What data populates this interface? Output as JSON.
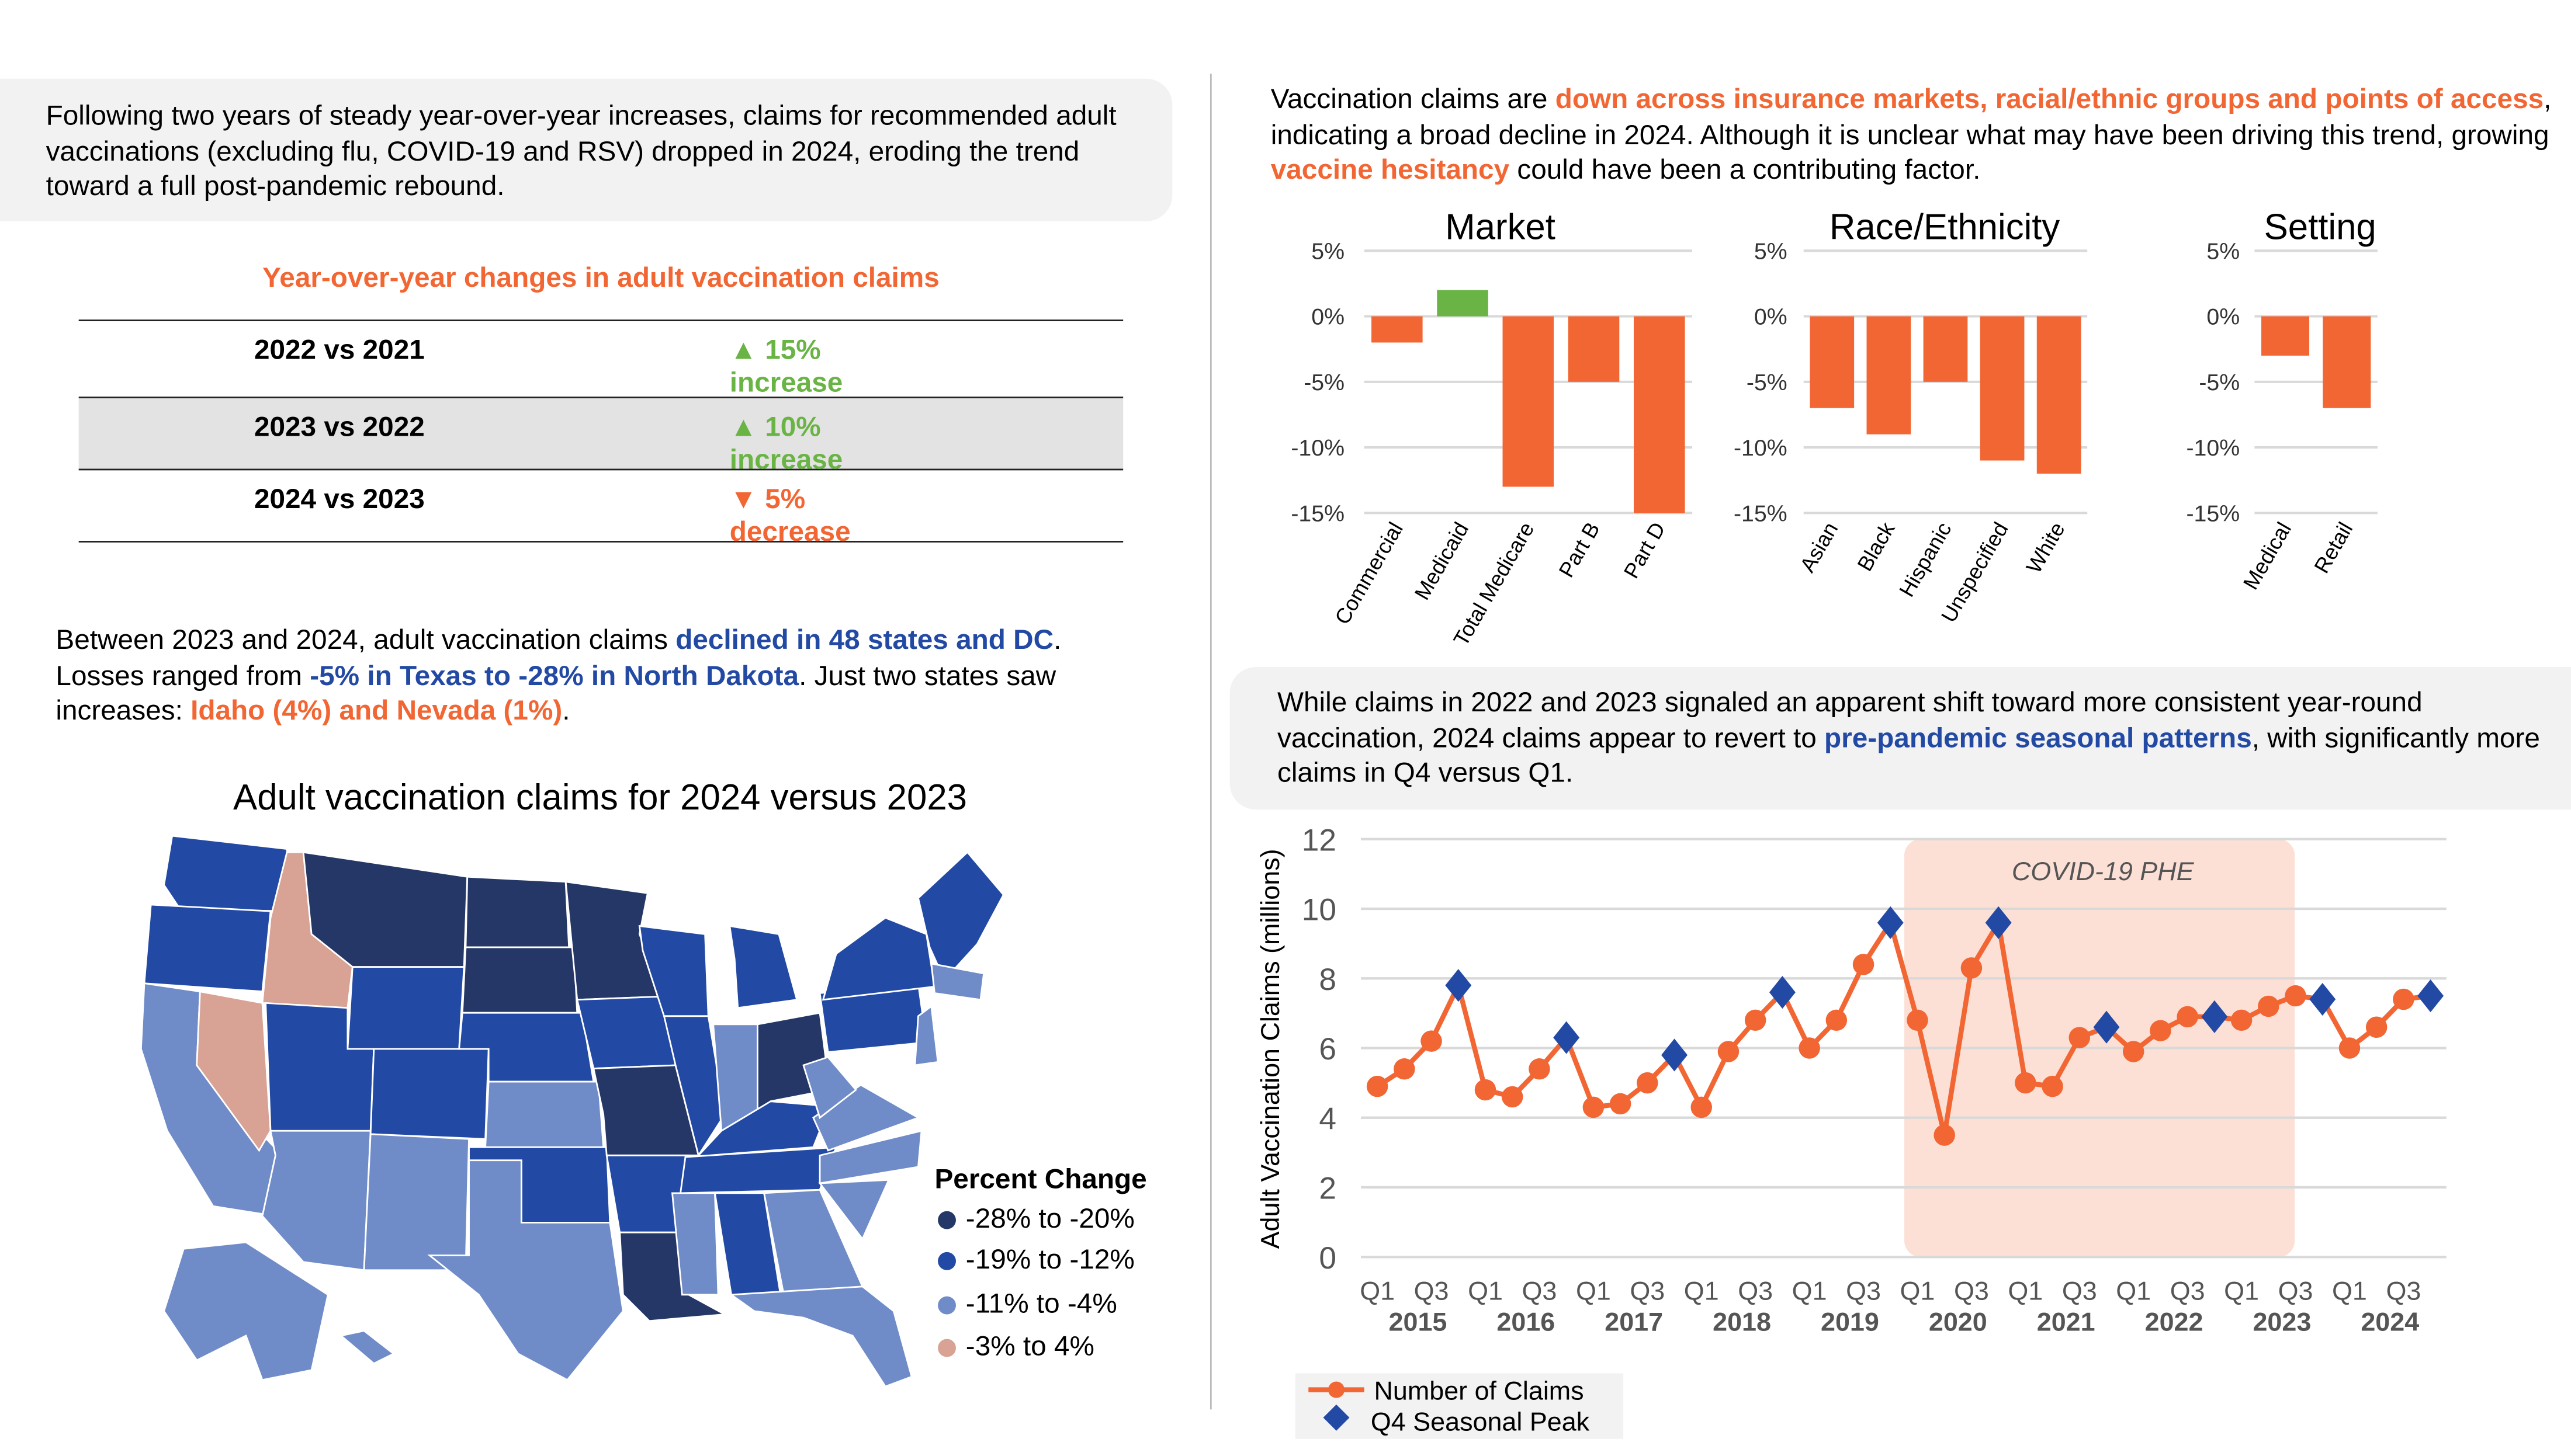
{
  "left": {
    "intro": "Following two years of steady year-over-year increases, claims for recommended adult vaccinations (excluding flu, COVID-19 and RSV) dropped in 2024, eroding the trend toward a full post-pandemic rebound.",
    "table": {
      "title": "Year-over-year changes in adult vaccination claims",
      "rows": [
        {
          "period": "2022 vs 2021",
          "change": "15% increase",
          "direction": "up"
        },
        {
          "period": "2023 vs 2022",
          "change": "10% increase",
          "direction": "up"
        },
        {
          "period": "2024 vs 2023",
          "change": "5% decrease",
          "direction": "down"
        }
      ]
    },
    "states_text": {
      "p1": "Between 2023 and 2024, adult vaccination claims ",
      "h1": "declined in 48 states and DC",
      "p2": ". Losses ranged from ",
      "h2": "-5% in Texas to -28% in North Dakota",
      "p3": ". Just two states saw increases: ",
      "h3": "Idaho (4%) and Nevada (1%)",
      "p4": "."
    },
    "map": {
      "title": "Adult vaccination claims for 2024 versus 2023",
      "legend_title": "Percent Change",
      "legend": [
        {
          "label": "-28% to -20%",
          "color": "#253766"
        },
        {
          "label": "-19% to -12%",
          "color": "#2249a3"
        },
        {
          "label": "-11% to -4%",
          "color": "#6f8bc8"
        },
        {
          "label": "-3% to 4%",
          "color": "#d8a295"
        }
      ]
    }
  },
  "right": {
    "intro": {
      "p1": "Vaccination claims are ",
      "h1": "down across insurance markets, racial/ethnic groups and points of access",
      "p2": ", indicating a broad decline in 2024. Although it is unclear what may have been driving this trend, growing ",
      "h2": "vaccine hesitancy",
      "p3": " could have been a contributing factor."
    },
    "seasonal": {
      "p1": "While claims in 2022 and 2023 signaled an apparent shift toward more consistent year-round vaccination, 2024 claims appear to revert to ",
      "h1": "pre-pandemic seasonal patterns",
      "p2": ", with significantly more claims in Q4 versus Q1."
    }
  },
  "colors": {
    "orange": "#f26633",
    "green": "#6ab445",
    "blue": "#2249a3",
    "phe": "#fce0d6"
  },
  "chart_data": [
    {
      "type": "bar",
      "title": "Market",
      "categories": [
        "Commercial",
        "Medicaid",
        "Total Medicare",
        "Part B",
        "Part D"
      ],
      "values": [
        -2,
        2,
        -13,
        -5,
        -15
      ],
      "ylim": [
        -15,
        5
      ],
      "yticks": [
        "5%",
        "0%",
        "-5%",
        "-10%",
        "-15%"
      ],
      "grid": true
    },
    {
      "type": "bar",
      "title": "Race/Ethnicity",
      "categories": [
        "Asian",
        "Black",
        "Hispanic",
        "Unspecified",
        "White"
      ],
      "values": [
        -7,
        -9,
        -5,
        -11,
        -12
      ],
      "ylim": [
        -15,
        5
      ],
      "yticks": [
        "5%",
        "0%",
        "-5%",
        "-10%",
        "-15%"
      ],
      "grid": true
    },
    {
      "type": "bar",
      "title": "Setting",
      "categories": [
        "Medical",
        "Retail"
      ],
      "values": [
        -3,
        -7
      ],
      "ylim": [
        -15,
        5
      ],
      "yticks": [
        "5%",
        "0%",
        "-5%",
        "-10%",
        "-15%"
      ],
      "grid": true
    },
    {
      "type": "line",
      "ylabel": "Adult Vaccination Claims (millions)",
      "ylim": [
        0,
        12
      ],
      "yticks": [
        "0",
        "2",
        "4",
        "6",
        "8",
        "10",
        "12"
      ],
      "years": [
        "2015",
        "2016",
        "2017",
        "2018",
        "2019",
        "2020",
        "2021",
        "2022",
        "2023",
        "2024"
      ],
      "quarter_labels": [
        "Q1",
        "Q3"
      ],
      "series": [
        {
          "name": "Number of Claims",
          "values": [
            4.9,
            5.4,
            6.2,
            7.8,
            4.8,
            4.6,
            5.4,
            6.3,
            4.3,
            4.4,
            5.0,
            5.8,
            4.3,
            5.9,
            6.8,
            7.6,
            6.0,
            6.8,
            8.4,
            9.6,
            6.8,
            3.5,
            8.3,
            9.6,
            5.0,
            4.9,
            6.3,
            6.6,
            5.9,
            6.5,
            6.9,
            6.9,
            6.8,
            7.2,
            7.5,
            7.4,
            6.0,
            6.6,
            7.4,
            7.5
          ]
        },
        {
          "name": "Q4 Seasonal Peak",
          "marker": "diamond",
          "quarters": "Q4 of each year"
        }
      ],
      "annotation": {
        "label": "COVID-19 PHE",
        "from": "2020 Q1",
        "to": "2023 Q2"
      },
      "legend": [
        "Number of Claims",
        "Q4 Seasonal Peak"
      ],
      "legend_placement": "bottom-left",
      "grid": true
    }
  ]
}
